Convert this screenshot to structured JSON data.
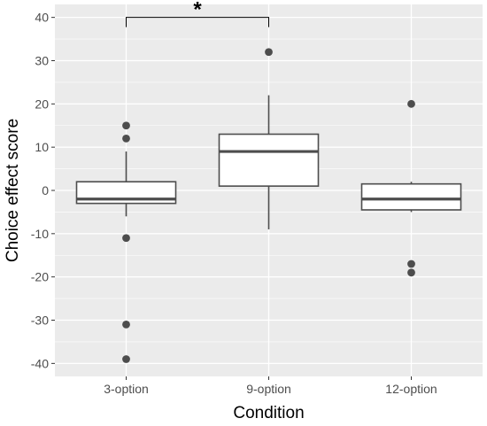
{
  "chart_data": {
    "type": "boxplot",
    "xlabel": "Condition",
    "ylabel": "Choice effect score",
    "ylim": [
      -43,
      43
    ],
    "y_ticks": [
      -40,
      -30,
      -20,
      -10,
      0,
      10,
      20,
      30,
      40
    ],
    "categories": [
      "3-option",
      "9-option",
      "12-option"
    ],
    "boxes": [
      {
        "category": "3-option",
        "q1": -3,
        "median": -2,
        "q3": 2,
        "whisker_low": -6,
        "whisker_high": 9,
        "outliers": [
          15,
          12,
          -11,
          -31,
          -39
        ]
      },
      {
        "category": "9-option",
        "q1": 1,
        "median": 9,
        "q3": 13,
        "whisker_low": -9,
        "whisker_high": 22,
        "outliers": [
          32
        ]
      },
      {
        "category": "12-option",
        "q1": -4.5,
        "median": -2,
        "q3": 1.5,
        "whisker_low": -5,
        "whisker_high": 2,
        "outliers": [
          20,
          -17,
          -19
        ]
      }
    ],
    "annotations": [
      {
        "label": "*",
        "from": "3-option",
        "to": "9-option",
        "y": 40
      }
    ],
    "grid": true,
    "colors": {
      "panel": "#ebebeb",
      "grid": "#ffffff",
      "box_line": "#4d4d4d",
      "box_fill": "#ffffff"
    }
  }
}
